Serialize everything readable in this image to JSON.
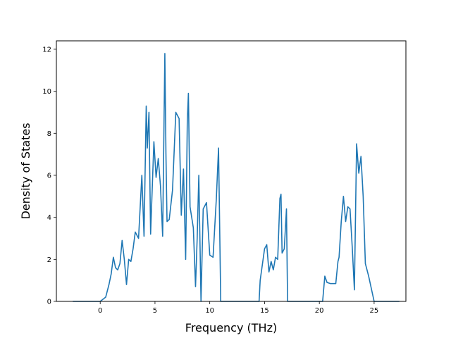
{
  "chart_data": {
    "type": "line",
    "title": "",
    "xlabel": "Frequency (THz)",
    "ylabel": "Density of States",
    "xlim": [
      -4.0,
      27.9
    ],
    "ylim": [
      0,
      12.4
    ],
    "xticks": [
      0,
      5,
      10,
      15,
      20,
      25
    ],
    "xtick_labels": [
      "0",
      "5",
      "10",
      "15",
      "20",
      "25"
    ],
    "yticks": [
      0,
      2,
      4,
      6,
      8,
      10,
      12
    ],
    "ytick_labels": [
      "0",
      "2",
      "4",
      "6",
      "8",
      "10",
      "12"
    ],
    "grid": false,
    "line_color": "#1f77b4",
    "series": [
      {
        "x": [
          -2.5,
          0.0,
          0.5,
          0.8,
          1.0,
          1.2,
          1.4,
          1.6,
          1.8,
          2.0,
          2.2,
          2.4,
          2.6,
          2.8,
          3.0,
          3.2,
          3.5,
          3.8,
          4.0,
          4.2,
          4.3,
          4.45,
          4.6,
          4.75,
          4.9,
          5.1,
          5.3,
          5.5,
          5.7,
          5.9,
          6.0,
          6.1,
          6.3,
          6.6,
          6.9,
          7.2,
          7.4,
          7.6,
          7.8,
          7.95,
          8.05,
          8.2,
          8.5,
          8.7,
          8.85,
          9.0,
          9.2,
          9.4,
          9.7,
          10.0,
          10.3,
          10.6,
          10.8,
          11.0,
          14.5,
          14.6,
          15.0,
          15.2,
          15.4,
          15.6,
          15.8,
          16.0,
          16.2,
          16.4,
          16.5,
          16.6,
          16.8,
          17.0,
          17.1,
          17.2,
          20.3,
          20.5,
          20.7,
          21.0,
          21.5,
          21.7,
          21.8,
          22.0,
          22.2,
          22.4,
          22.6,
          22.8,
          23.0,
          23.2,
          23.4,
          23.6,
          23.8,
          24.0,
          24.2,
          24.5,
          25.0,
          27.3
        ],
        "values": [
          0,
          0,
          0.2,
          0.8,
          1.3,
          2.1,
          1.6,
          1.5,
          1.8,
          2.9,
          2.0,
          0.8,
          2.0,
          1.9,
          2.5,
          3.3,
          3.0,
          6.0,
          3.1,
          9.3,
          7.3,
          9.0,
          3.2,
          5.4,
          7.6,
          5.9,
          6.8,
          5.5,
          3.1,
          11.8,
          7.0,
          3.8,
          3.9,
          5.3,
          9.0,
          8.7,
          4.1,
          6.3,
          2.0,
          8.6,
          9.9,
          4.5,
          3.5,
          0.7,
          3.0,
          6.0,
          0.0,
          4.4,
          4.7,
          2.2,
          2.1,
          4.9,
          7.3,
          0.0,
          0.0,
          1.0,
          2.5,
          2.7,
          1.4,
          1.9,
          1.5,
          2.1,
          2.0,
          4.9,
          5.1,
          2.3,
          2.5,
          4.4,
          0.0,
          0.0,
          0.0,
          1.2,
          0.9,
          0.85,
          0.85,
          1.9,
          2.1,
          3.8,
          5.0,
          3.8,
          4.5,
          4.4,
          2.6,
          0.55,
          7.5,
          6.1,
          6.9,
          5.0,
          1.8,
          1.2,
          0.0,
          0.0
        ]
      }
    ]
  }
}
